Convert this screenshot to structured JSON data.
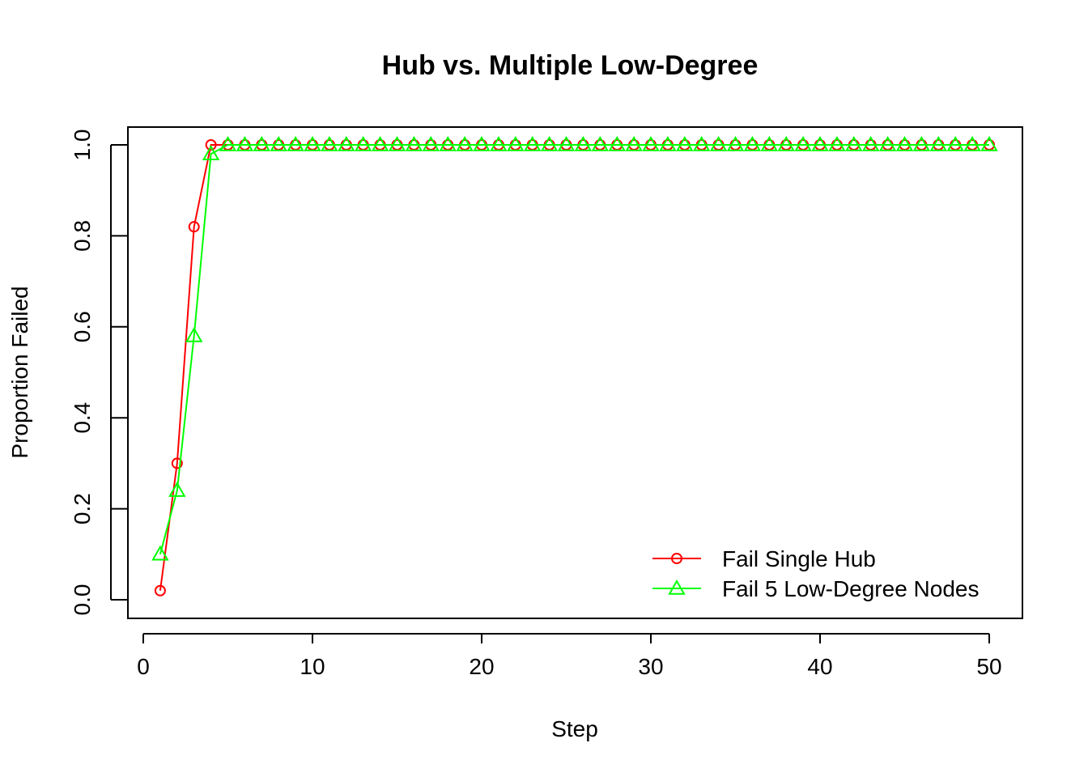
{
  "chart_data": {
    "type": "line",
    "title": "Hub vs. Multiple Low-Degree",
    "xlabel": "Step",
    "ylabel": "Proportion Failed",
    "xlim": [
      0,
      50
    ],
    "ylim": [
      0.0,
      1.0
    ],
    "x_ticks": [
      "0",
      "10",
      "20",
      "30",
      "40",
      "50"
    ],
    "y_ticks": [
      "0.0",
      "0.2",
      "0.4",
      "0.6",
      "0.8",
      "1.0"
    ],
    "grid": false,
    "legend_position": "bottom-right",
    "series": [
      {
        "name": "Fail Single Hub",
        "color": "#ff0000",
        "marker": "circle",
        "x": [
          1,
          2,
          3,
          4,
          5,
          6,
          7,
          8,
          9,
          10,
          11,
          12,
          13,
          14,
          15,
          16,
          17,
          18,
          19,
          20,
          21,
          22,
          23,
          24,
          25,
          26,
          27,
          28,
          29,
          30,
          31,
          32,
          33,
          34,
          35,
          36,
          37,
          38,
          39,
          40,
          41,
          42,
          43,
          44,
          45,
          46,
          47,
          48,
          49,
          50
        ],
        "values": [
          0.02,
          0.3,
          0.82,
          1.0,
          1.0,
          1.0,
          1.0,
          1.0,
          1.0,
          1.0,
          1.0,
          1.0,
          1.0,
          1.0,
          1.0,
          1.0,
          1.0,
          1.0,
          1.0,
          1.0,
          1.0,
          1.0,
          1.0,
          1.0,
          1.0,
          1.0,
          1.0,
          1.0,
          1.0,
          1.0,
          1.0,
          1.0,
          1.0,
          1.0,
          1.0,
          1.0,
          1.0,
          1.0,
          1.0,
          1.0,
          1.0,
          1.0,
          1.0,
          1.0,
          1.0,
          1.0,
          1.0,
          1.0,
          1.0,
          1.0
        ]
      },
      {
        "name": "Fail 5 Low-Degree Nodes",
        "color": "#00ff00",
        "marker": "triangle",
        "x": [
          1,
          2,
          3,
          4,
          5,
          6,
          7,
          8,
          9,
          10,
          11,
          12,
          13,
          14,
          15,
          16,
          17,
          18,
          19,
          20,
          21,
          22,
          23,
          24,
          25,
          26,
          27,
          28,
          29,
          30,
          31,
          32,
          33,
          34,
          35,
          36,
          37,
          38,
          39,
          40,
          41,
          42,
          43,
          44,
          45,
          46,
          47,
          48,
          49,
          50
        ],
        "values": [
          0.1,
          0.24,
          0.58,
          0.98,
          1.0,
          1.0,
          1.0,
          1.0,
          1.0,
          1.0,
          1.0,
          1.0,
          1.0,
          1.0,
          1.0,
          1.0,
          1.0,
          1.0,
          1.0,
          1.0,
          1.0,
          1.0,
          1.0,
          1.0,
          1.0,
          1.0,
          1.0,
          1.0,
          1.0,
          1.0,
          1.0,
          1.0,
          1.0,
          1.0,
          1.0,
          1.0,
          1.0,
          1.0,
          1.0,
          1.0,
          1.0,
          1.0,
          1.0,
          1.0,
          1.0,
          1.0,
          1.0,
          1.0,
          1.0,
          1.0
        ]
      }
    ]
  }
}
